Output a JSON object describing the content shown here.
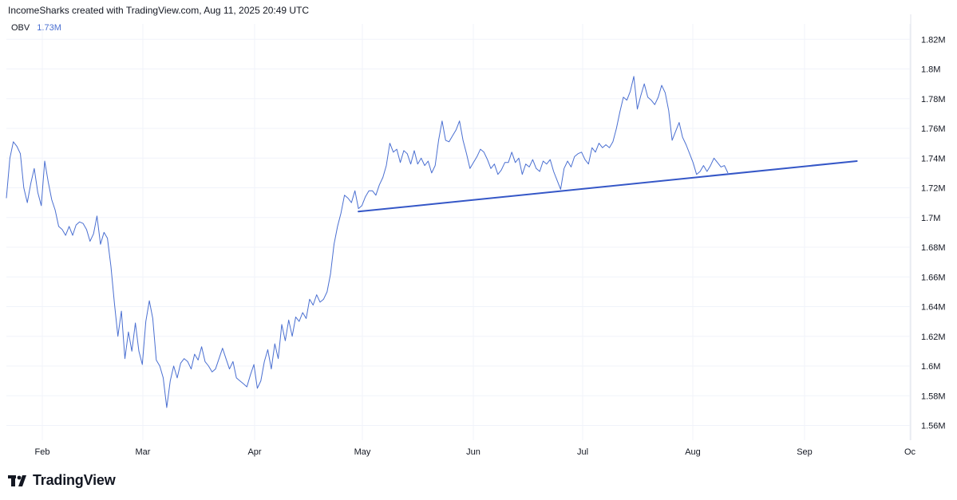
{
  "header": {
    "text": "IncomeSharks created with TradingView.com, Aug 11, 2025 20:49 UTC"
  },
  "legend": {
    "name": "OBV",
    "value": "1.73M"
  },
  "brand": {
    "name": "TradingView"
  },
  "colors": {
    "series": "#4a6fd1",
    "trendline": "#3557c7",
    "grid": "#f0f3fa",
    "text": "#131722"
  },
  "chart_data": {
    "type": "line",
    "x_tick_labels": [
      "Feb",
      "Mar",
      "Apr",
      "May",
      "Jun",
      "Jul",
      "Aug",
      "Sep",
      "Oc"
    ],
    "y_tick_labels": [
      "1.82M",
      "1.8M",
      "1.78M",
      "1.76M",
      "1.74M",
      "1.72M",
      "1.7M",
      "1.68M",
      "1.66M",
      "1.64M",
      "1.62M",
      "1.6M",
      "1.58M",
      "1.56M"
    ],
    "ylim": [
      1.55,
      1.83
    ],
    "y_unit": "M",
    "series": [
      {
        "values": [
          1.713,
          1.74,
          1.751,
          1.748,
          1.743,
          1.72,
          1.71,
          1.723,
          1.733,
          1.717,
          1.708,
          1.738,
          1.724,
          1.712,
          1.705,
          1.694,
          1.692,
          1.688,
          1.694,
          1.688,
          1.695,
          1.697,
          1.696,
          1.692,
          1.684,
          1.689,
          1.701,
          1.682,
          1.69,
          1.686,
          1.667,
          1.642,
          1.62,
          1.637,
          1.605,
          1.623,
          1.61,
          1.629,
          1.61,
          1.601,
          1.63,
          1.644,
          1.632,
          1.604,
          1.6,
          1.592,
          1.572,
          1.59,
          1.6,
          1.592,
          1.602,
          1.605,
          1.603,
          1.598,
          1.608,
          1.604,
          1.613,
          1.603,
          1.6,
          1.596,
          1.598,
          1.605,
          1.612,
          1.605,
          1.598,
          1.603,
          1.592,
          1.59,
          1.588,
          1.586,
          1.594,
          1.601,
          1.585,
          1.59,
          1.603,
          1.611,
          1.598,
          1.615,
          1.605,
          1.628,
          1.617,
          1.631,
          1.62,
          1.633,
          1.63,
          1.636,
          1.632,
          1.645,
          1.641,
          1.648,
          1.643,
          1.645,
          1.65,
          1.662,
          1.682,
          1.694,
          1.703,
          1.715,
          1.713,
          1.71,
          1.718,
          1.706,
          1.708,
          1.714,
          1.718,
          1.718,
          1.715,
          1.722,
          1.727,
          1.735,
          1.75,
          1.744,
          1.746,
          1.737,
          1.745,
          1.743,
          1.736,
          1.745,
          1.736,
          1.74,
          1.735,
          1.738,
          1.73,
          1.735,
          1.752,
          1.765,
          1.752,
          1.751,
          1.755,
          1.759,
          1.765,
          1.752,
          1.743,
          1.733,
          1.737,
          1.741,
          1.746,
          1.744,
          1.739,
          1.733,
          1.736,
          1.729,
          1.732,
          1.737,
          1.737,
          1.744,
          1.737,
          1.74,
          1.729,
          1.736,
          1.734,
          1.739,
          1.733,
          1.731,
          1.738,
          1.736,
          1.739,
          1.731,
          1.725,
          1.719,
          1.733,
          1.738,
          1.734,
          1.741,
          1.743,
          1.744,
          1.739,
          1.736,
          1.747,
          1.744,
          1.75,
          1.747,
          1.749,
          1.747,
          1.751,
          1.76,
          1.771,
          1.781,
          1.779,
          1.785,
          1.795,
          1.773,
          1.782,
          1.79,
          1.781,
          1.779,
          1.776,
          1.781,
          1.789,
          1.784,
          1.772,
          1.752,
          1.758,
          1.764,
          1.754,
          1.749,
          1.743,
          1.737,
          1.729,
          1.731,
          1.735,
          1.731,
          1.735,
          1.74,
          1.737,
          1.734,
          1.735,
          1.73
        ]
      }
    ],
    "trendline": {
      "from_index": 101,
      "from_value": 1.704,
      "to_index": 244,
      "to_value": 1.738
    }
  }
}
